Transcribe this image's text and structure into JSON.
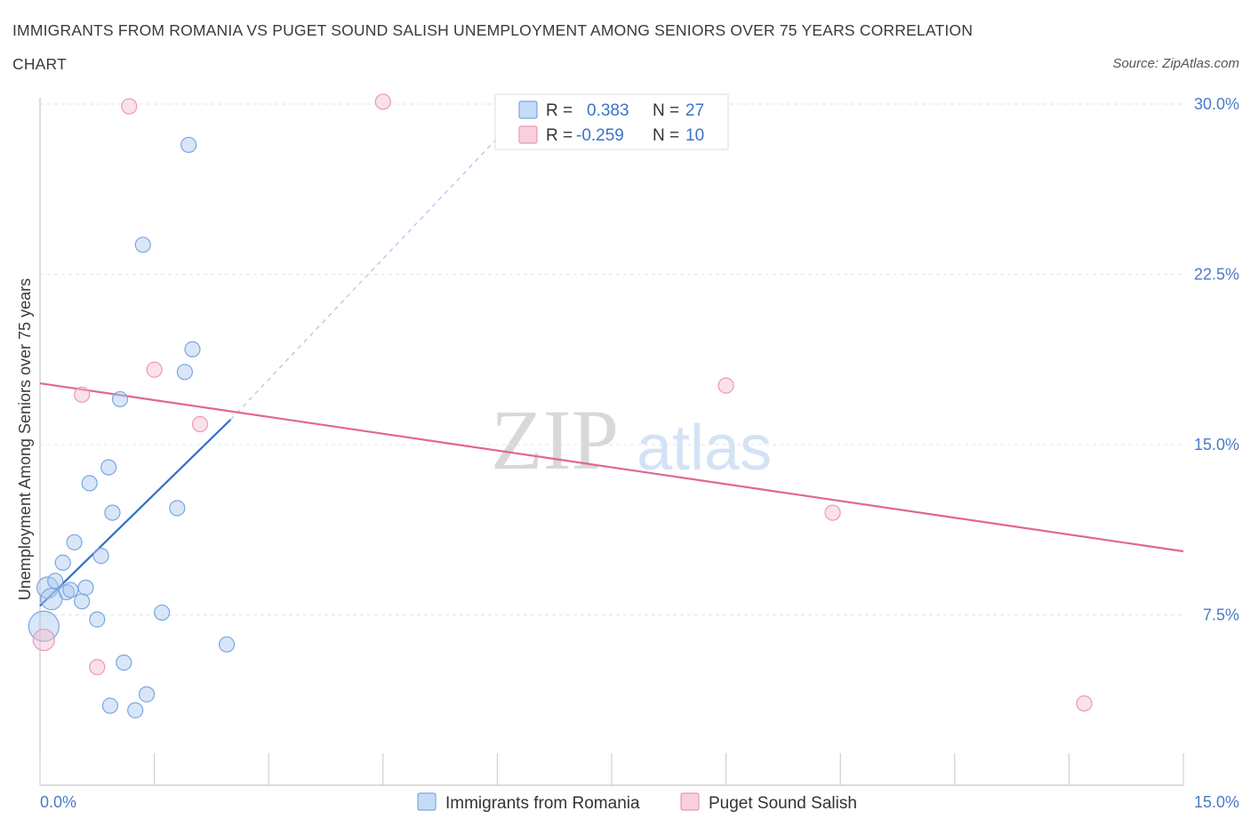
{
  "chart_data": {
    "type": "scatter",
    "title": "IMMIGRANTS FROM ROMANIA VS PUGET SOUND SALISH UNEMPLOYMENT AMONG SENIORS OVER 75 YEARS CORRELATION CHART",
    "title_lines": [
      "IMMIGRANTS FROM ROMANIA VS PUGET SOUND SALISH UNEMPLOYMENT AMONG SENIORS OVER 75 YEARS CORRELATION",
      "CHART"
    ],
    "source": "Source: ZipAtlas.com",
    "xlabel": "",
    "ylabel": "Unemployment Among Seniors over 75 years",
    "xlim": [
      0,
      15
    ],
    "ylim": [
      0,
      30
    ],
    "x_tick_labels": [
      "0.0%",
      "15.0%"
    ],
    "y_tick_labels": [
      {
        "value": 7.5,
        "label": "7.5%"
      },
      {
        "value": 15.0,
        "label": "15.0%"
      },
      {
        "value": 22.5,
        "label": "22.5%"
      },
      {
        "value": 30.0,
        "label": "30.0%"
      }
    ],
    "watermark": {
      "zip": "ZIP",
      "atlas": "atlas"
    },
    "legend": [
      {
        "r_label": "R =",
        "r_value": "0.383",
        "n_label": "N =",
        "n_value": "27"
      },
      {
        "r_label": "R =",
        "r_value": "-0.259",
        "n_label": "N =",
        "n_value": "10"
      }
    ],
    "series": [
      {
        "name": "Immigrants from Romania",
        "color": "#a9c8f0",
        "stroke": "#7aa7e0",
        "line_color": "#2f6fcc",
        "trend": {
          "x0": 0.0,
          "y0": 7.9,
          "x1": 2.5,
          "y1": 16.1,
          "dash_x1": 6.0,
          "dash_y1": 28.5
        },
        "points": [
          {
            "x": 0.05,
            "y": 7.0,
            "size": "large"
          },
          {
            "x": 0.1,
            "y": 8.7,
            "size": "medium"
          },
          {
            "x": 0.15,
            "y": 8.2,
            "size": "medium"
          },
          {
            "x": 0.2,
            "y": 9.0
          },
          {
            "x": 0.3,
            "y": 9.8
          },
          {
            "x": 0.35,
            "y": 8.5
          },
          {
            "x": 0.4,
            "y": 8.6
          },
          {
            "x": 0.45,
            "y": 10.7
          },
          {
            "x": 0.55,
            "y": 8.1
          },
          {
            "x": 0.6,
            "y": 8.7
          },
          {
            "x": 0.65,
            "y": 13.3
          },
          {
            "x": 0.75,
            "y": 7.3
          },
          {
            "x": 0.8,
            "y": 10.1
          },
          {
            "x": 0.9,
            "y": 14.0
          },
          {
            "x": 0.95,
            "y": 12.0
          },
          {
            "x": 0.92,
            "y": 3.5
          },
          {
            "x": 1.05,
            "y": 17.0
          },
          {
            "x": 1.1,
            "y": 5.4
          },
          {
            "x": 1.25,
            "y": 3.3
          },
          {
            "x": 1.4,
            "y": 4.0
          },
          {
            "x": 1.35,
            "y": 23.8
          },
          {
            "x": 1.6,
            "y": 7.6
          },
          {
            "x": 1.8,
            "y": 12.2
          },
          {
            "x": 1.9,
            "y": 18.2
          },
          {
            "x": 1.95,
            "y": 28.2
          },
          {
            "x": 2.0,
            "y": 19.2
          },
          {
            "x": 2.45,
            "y": 6.2
          }
        ]
      },
      {
        "name": "Puget Sound Salish",
        "color": "#f6bcd0",
        "stroke": "#ec98b6",
        "line_color": "#e06792",
        "trend": {
          "x0": 0.0,
          "y0": 17.7,
          "x1": 15.0,
          "y1": 10.3
        },
        "points": [
          {
            "x": 0.05,
            "y": 6.4,
            "size": "medium"
          },
          {
            "x": 0.55,
            "y": 17.2
          },
          {
            "x": 0.75,
            "y": 5.2
          },
          {
            "x": 1.17,
            "y": 29.9
          },
          {
            "x": 1.5,
            "y": 18.3
          },
          {
            "x": 2.1,
            "y": 15.9
          },
          {
            "x": 4.5,
            "y": 30.1
          },
          {
            "x": 9.0,
            "y": 17.6
          },
          {
            "x": 10.4,
            "y": 12.0
          },
          {
            "x": 13.7,
            "y": 3.6
          }
        ]
      }
    ]
  }
}
